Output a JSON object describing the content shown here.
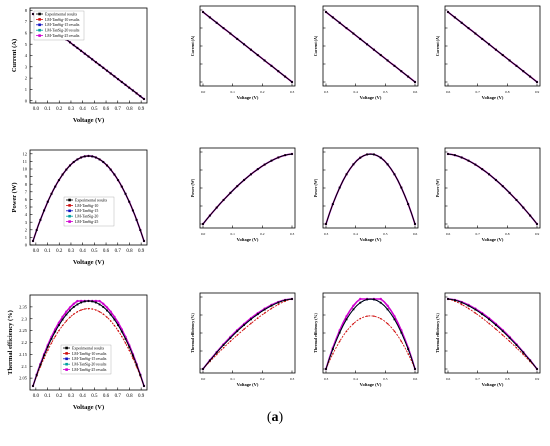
{
  "figure_label": "a",
  "chart_data": [
    {
      "id": "current-main",
      "type": "line",
      "xlabel": "Voltage (V)",
      "ylabel": "Current (A)",
      "xlim": [
        -0.05,
        0.95
      ],
      "ylim": [
        -0.2,
        8.2
      ],
      "xticks": [
        0.0,
        0.1,
        0.2,
        0.3,
        0.4,
        0.5,
        0.6,
        0.7,
        0.8,
        0.9
      ],
      "yticks": [
        0,
        1,
        2,
        3,
        4,
        5,
        6,
        7,
        8
      ],
      "curve": "current",
      "legend": [
        "Experimental results",
        "LM-TanSig-10 results",
        "LM-TanSig-15 results",
        "LM-TanSig-20 results",
        "LM-TanSig-25 results"
      ],
      "legend_pos": "top-left",
      "series_styles": [
        "#000000",
        "#d01010",
        "#1010c0",
        "#00a0a0",
        "#d000d0"
      ],
      "x": [
        0.0,
        0.1,
        0.2,
        0.3,
        0.4,
        0.5,
        0.6,
        0.7,
        0.8,
        0.9
      ],
      "y": [
        8.0,
        7.1,
        6.2,
        5.3,
        4.45,
        3.55,
        2.65,
        1.8,
        0.9,
        0.05
      ]
    },
    {
      "id": "current-zoom-1",
      "type": "line",
      "xlabel": "Voltage (V)",
      "ylabel": "Current (A)",
      "xticks": [
        "0.0",
        "0.1",
        "0.2",
        "0.3"
      ],
      "yticks": [
        "",
        "",
        "",
        "",
        ""
      ],
      "curve": "current",
      "dev": 0
    },
    {
      "id": "current-zoom-2",
      "type": "line",
      "xlabel": "Voltage (V)",
      "ylabel": "Current (A)",
      "xticks": [
        "0.3",
        "0.4",
        "0.5",
        "0.6"
      ],
      "yticks": [
        "",
        "",
        "",
        "",
        ""
      ],
      "curve": "current",
      "dev": 0
    },
    {
      "id": "current-zoom-3",
      "type": "line",
      "xlabel": "Voltage (V)",
      "ylabel": "Current (A)",
      "xticks": [
        "0.6",
        "0.7",
        "0.8",
        "0.9"
      ],
      "yticks": [
        "",
        "",
        "",
        "",
        ""
      ],
      "curve": "current",
      "dev": 0
    },
    {
      "id": "power-main",
      "type": "line",
      "xlabel": "Voltage (V)",
      "ylabel": "Power (W)",
      "xlim": [
        -0.05,
        0.95
      ],
      "ylim": [
        0,
        12.5
      ],
      "xticks": [
        0.0,
        0.1,
        0.2,
        0.3,
        0.4,
        0.5,
        0.6,
        0.7,
        0.8,
        0.9
      ],
      "yticks": [
        0,
        1,
        2,
        3,
        4,
        5,
        6,
        7,
        8,
        9,
        10,
        11,
        12
      ],
      "curve": "power",
      "legend": [
        "Experimental results",
        "LM-TanSig-10",
        "LM-TanSig-15",
        "LM-TanSig-20",
        "LM-TanSig-25"
      ],
      "legend_pos": "center",
      "series_styles": [
        "#000000",
        "#d01010",
        "#1010c0",
        "#00a0a0",
        "#d000d0"
      ],
      "x": [
        0.0,
        0.1,
        0.2,
        0.3,
        0.4,
        0.45,
        0.5,
        0.6,
        0.7,
        0.8,
        0.9
      ],
      "y": [
        0.4,
        4.3,
        7.3,
        9.6,
        10.9,
        11.1,
        10.9,
        9.6,
        7.3,
        4.3,
        0.4
      ]
    },
    {
      "id": "power-zoom-1",
      "type": "line",
      "xlabel": "Voltage (V)",
      "ylabel": "Power (W)",
      "xticks": [
        "0.0",
        "0.1",
        "0.2",
        "0.3"
      ],
      "yticks": [
        "",
        "",
        "",
        "",
        ""
      ],
      "curve": "rise",
      "dev": 0
    },
    {
      "id": "power-zoom-2",
      "type": "line",
      "xlabel": "Voltage (V)",
      "ylabel": "Power (W)",
      "xticks": [
        "0.3",
        "0.4",
        "0.5",
        "0.6"
      ],
      "yticks": [
        "",
        "",
        "",
        "",
        ""
      ],
      "curve": "hump",
      "dev": 0
    },
    {
      "id": "power-zoom-3",
      "type": "line",
      "xlabel": "Voltage (V)",
      "ylabel": "Power (W)",
      "xticks": [
        "0.6",
        "0.7",
        "0.8",
        "0.9"
      ],
      "yticks": [
        "",
        "",
        "",
        "",
        ""
      ],
      "curve": "fall",
      "dev": 0
    },
    {
      "id": "thermal-main",
      "type": "line",
      "xlabel": "Voltage (V)",
      "ylabel": "Thermal efficiency (%)",
      "xlim": [
        -0.05,
        0.95
      ],
      "ylim": [
        2.0,
        2.4
      ],
      "xticks": [
        0.0,
        0.1,
        0.2,
        0.3,
        0.4,
        0.5,
        0.6,
        0.7,
        0.8,
        0.9
      ],
      "yticks": [
        2.05,
        2.1,
        2.15,
        2.2,
        2.25,
        2.3,
        2.35
      ],
      "curve": "thermal",
      "legend": [
        "Experimental results",
        "LM-TanSig-10 results",
        "LM-TanSig-15 results",
        "LM-TanSig-20 results",
        "LM-TanSig-25 results"
      ],
      "legend_pos": "bottom-left",
      "series_styles": [
        "#000000",
        "#d01010",
        "#1010c0",
        "#00a0a0",
        "#d000d0"
      ],
      "x": [
        0.0,
        0.1,
        0.2,
        0.3,
        0.4,
        0.5,
        0.6,
        0.7,
        0.8,
        0.9
      ],
      "y": [
        2.01,
        2.15,
        2.24,
        2.29,
        2.31,
        2.31,
        2.28,
        2.22,
        2.13,
        2.01
      ]
    },
    {
      "id": "thermal-zoom-1",
      "type": "line",
      "xlabel": "Voltage (V)",
      "ylabel": "Thermal efficiency (%)",
      "xticks": [
        "0.0",
        "0.1",
        "0.2",
        "0.3"
      ],
      "yticks": [
        "",
        "",
        "",
        "",
        ""
      ],
      "curve": "rise",
      "dev": 1
    },
    {
      "id": "thermal-zoom-2",
      "type": "line",
      "xlabel": "Voltage (V)",
      "ylabel": "Thermal efficiency (%)",
      "xticks": [
        "0.3",
        "0.4",
        "0.5",
        "0.6"
      ],
      "yticks": [
        "",
        "",
        "",
        "",
        ""
      ],
      "curve": "hump",
      "dev": 2
    },
    {
      "id": "thermal-zoom-3",
      "type": "line",
      "xlabel": "Voltage (V)",
      "ylabel": "Thermal efficiency (%)",
      "xticks": [
        "0.6",
        "0.7",
        "0.8",
        "0.9"
      ],
      "yticks": [
        "",
        "",
        "",
        "",
        ""
      ],
      "curve": "fall",
      "dev": 1
    }
  ]
}
